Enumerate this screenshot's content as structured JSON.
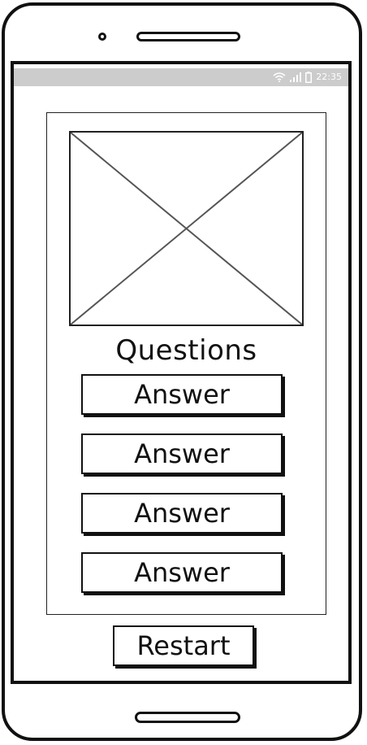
{
  "status_bar": {
    "time": "22:35",
    "icons": [
      "wifi-icon",
      "signal-icon",
      "battery-icon"
    ],
    "background": "#cccccc"
  },
  "quiz": {
    "image_icon": "image-placeholder-icon",
    "question": "Questions",
    "answers": [
      "Answer",
      "Answer",
      "Answer",
      "Answer"
    ],
    "restart_label": "Restart"
  }
}
